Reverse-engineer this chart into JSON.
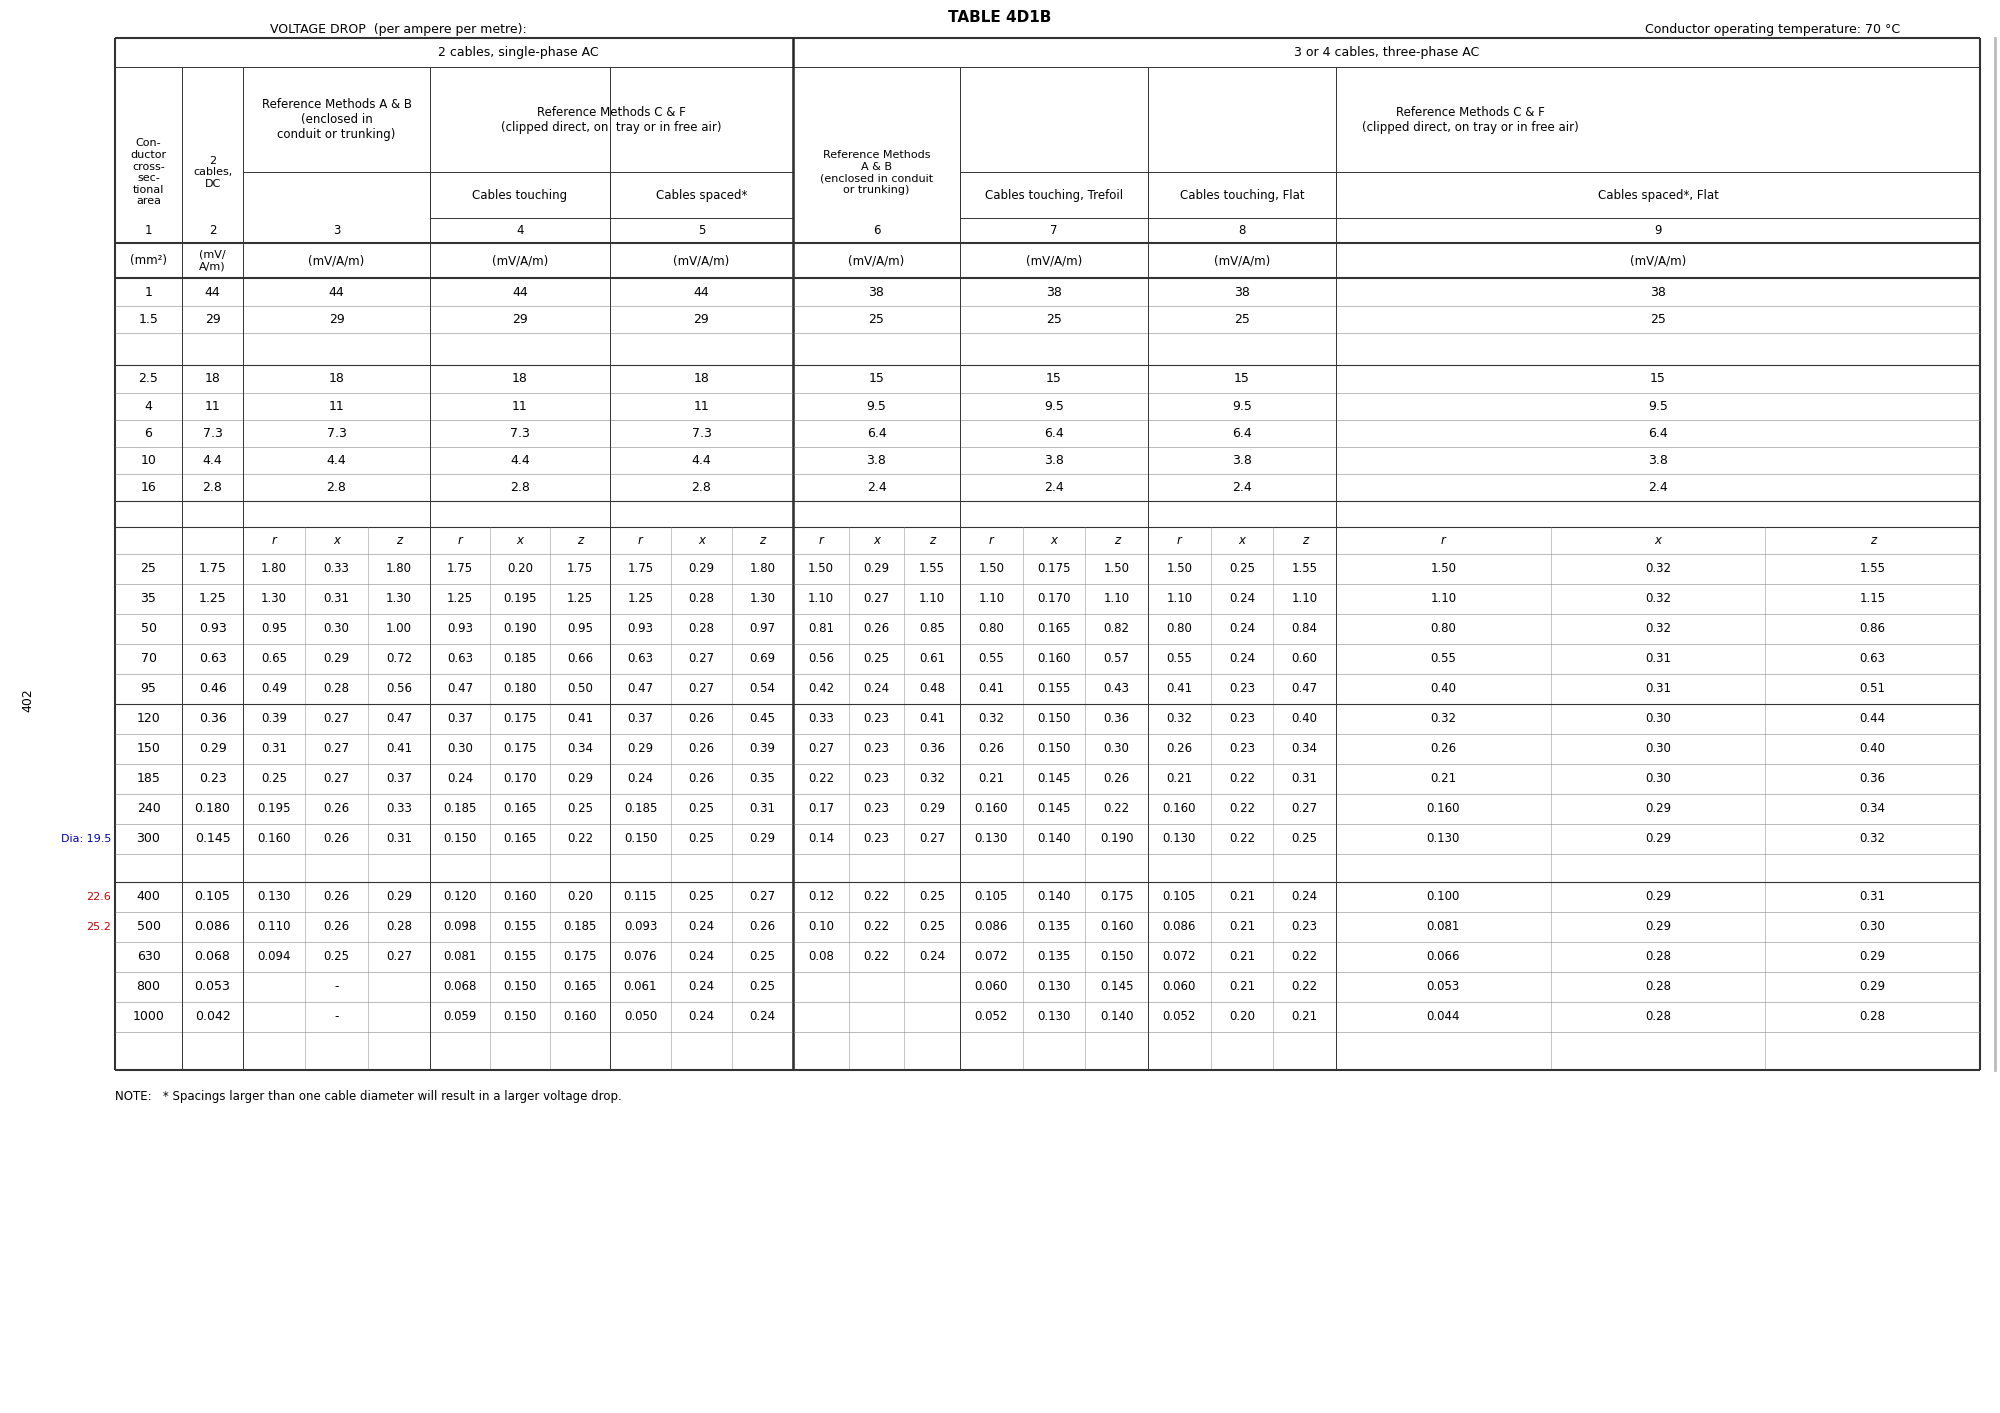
{
  "title": "TABLE 4D1B",
  "voltage_drop_label": "VOLTAGE DROP  (per ampere per metre):",
  "conductor_temp_label": "Conductor operating temperature: 70 °C",
  "page_num": "402",
  "note": "NOTE:   * Spacings larger than one cable diameter will result in a larger voltage drop.",
  "simple_rows": [
    [
      "1",
      "44",
      "44",
      "44",
      "44",
      "38",
      "38",
      "38",
      "38"
    ],
    [
      "1.5",
      "29",
      "29",
      "29",
      "29",
      "25",
      "25",
      "25",
      "25"
    ],
    [
      "2.5",
      "18",
      "18",
      "18",
      "18",
      "15",
      "15",
      "15",
      "15"
    ],
    [
      "4",
      "11",
      "11",
      "11",
      "11",
      "9.5",
      "9.5",
      "9.5",
      "9.5"
    ],
    [
      "6",
      "7.3",
      "7.3",
      "7.3",
      "7.3",
      "6.4",
      "6.4",
      "6.4",
      "6.4"
    ],
    [
      "10",
      "4.4",
      "4.4",
      "4.4",
      "4.4",
      "3.8",
      "3.8",
      "3.8",
      "3.8"
    ],
    [
      "16",
      "2.8",
      "2.8",
      "2.8",
      "2.8",
      "2.4",
      "2.4",
      "2.4",
      "2.4"
    ]
  ],
  "rxz_rows": [
    [
      "25",
      "1.75",
      "1.80",
      "0.33",
      "1.80",
      "1.75",
      "0.20",
      "1.75",
      "1.75",
      "0.29",
      "1.80",
      "1.50",
      "0.29",
      "1.55",
      "1.50",
      "0.175",
      "1.50",
      "1.50",
      "0.25",
      "1.55",
      "1.50",
      "0.32",
      "1.55"
    ],
    [
      "35",
      "1.25",
      "1.30",
      "0.31",
      "1.30",
      "1.25",
      "0.195",
      "1.25",
      "1.25",
      "0.28",
      "1.30",
      "1.10",
      "0.27",
      "1.10",
      "1.10",
      "0.170",
      "1.10",
      "1.10",
      "0.24",
      "1.10",
      "1.10",
      "0.32",
      "1.15"
    ],
    [
      "50",
      "0.93",
      "0.95",
      "0.30",
      "1.00",
      "0.93",
      "0.190",
      "0.95",
      "0.93",
      "0.28",
      "0.97",
      "0.81",
      "0.26",
      "0.85",
      "0.80",
      "0.165",
      "0.82",
      "0.80",
      "0.24",
      "0.84",
      "0.80",
      "0.32",
      "0.86"
    ],
    [
      "70",
      "0.63",
      "0.65",
      "0.29",
      "0.72",
      "0.63",
      "0.185",
      "0.66",
      "0.63",
      "0.27",
      "0.69",
      "0.56",
      "0.25",
      "0.61",
      "0.55",
      "0.160",
      "0.57",
      "0.55",
      "0.24",
      "0.60",
      "0.55",
      "0.31",
      "0.63"
    ],
    [
      "95",
      "0.46",
      "0.49",
      "0.28",
      "0.56",
      "0.47",
      "0.180",
      "0.50",
      "0.47",
      "0.27",
      "0.54",
      "0.42",
      "0.24",
      "0.48",
      "0.41",
      "0.155",
      "0.43",
      "0.41",
      "0.23",
      "0.47",
      "0.40",
      "0.31",
      "0.51"
    ]
  ],
  "rxz_rows2": [
    [
      "120",
      "0.36",
      "0.39",
      "0.27",
      "0.47",
      "0.37",
      "0.175",
      "0.41",
      "0.37",
      "0.26",
      "0.45",
      "0.33",
      "0.23",
      "0.41",
      "0.32",
      "0.150",
      "0.36",
      "0.32",
      "0.23",
      "0.40",
      "0.32",
      "0.30",
      "0.44"
    ],
    [
      "150",
      "0.29",
      "0.31",
      "0.27",
      "0.41",
      "0.30",
      "0.175",
      "0.34",
      "0.29",
      "0.26",
      "0.39",
      "0.27",
      "0.23",
      "0.36",
      "0.26",
      "0.150",
      "0.30",
      "0.26",
      "0.23",
      "0.34",
      "0.26",
      "0.30",
      "0.40"
    ],
    [
      "185",
      "0.23",
      "0.25",
      "0.27",
      "0.37",
      "0.24",
      "0.170",
      "0.29",
      "0.24",
      "0.26",
      "0.35",
      "0.22",
      "0.23",
      "0.32",
      "0.21",
      "0.145",
      "0.26",
      "0.21",
      "0.22",
      "0.31",
      "0.21",
      "0.30",
      "0.36"
    ],
    [
      "240",
      "0.180",
      "0.195",
      "0.26",
      "0.33",
      "0.185",
      "0.165",
      "0.25",
      "0.185",
      "0.25",
      "0.31",
      "0.17",
      "0.23",
      "0.29",
      "0.160",
      "0.145",
      "0.22",
      "0.160",
      "0.22",
      "0.27",
      "0.160",
      "0.29",
      "0.34"
    ],
    [
      "300",
      "0.145",
      "0.160",
      "0.26",
      "0.31",
      "0.150",
      "0.165",
      "0.22",
      "0.150",
      "0.25",
      "0.29",
      "0.14",
      "0.23",
      "0.27",
      "0.130",
      "0.140",
      "0.190",
      "0.130",
      "0.22",
      "0.25",
      "0.130",
      "0.29",
      "0.32"
    ]
  ],
  "rxz_rows3": [
    [
      "400",
      "0.105",
      "0.130",
      "0.26",
      "0.29",
      "0.120",
      "0.160",
      "0.20",
      "0.115",
      "0.25",
      "0.27",
      "0.12",
      "0.22",
      "0.25",
      "0.105",
      "0.140",
      "0.175",
      "0.105",
      "0.21",
      "0.24",
      "0.100",
      "0.29",
      "0.31"
    ],
    [
      "500",
      "0.086",
      "0.110",
      "0.26",
      "0.28",
      "0.098",
      "0.155",
      "0.185",
      "0.093",
      "0.24",
      "0.26",
      "0.10",
      "0.22",
      "0.25",
      "0.086",
      "0.135",
      "0.160",
      "0.086",
      "0.21",
      "0.23",
      "0.081",
      "0.29",
      "0.30"
    ],
    [
      "630",
      "0.068",
      "0.094",
      "0.25",
      "0.27",
      "0.081",
      "0.155",
      "0.175",
      "0.076",
      "0.24",
      "0.25",
      "0.08",
      "0.22",
      "0.24",
      "0.072",
      "0.135",
      "0.150",
      "0.072",
      "0.21",
      "0.22",
      "0.066",
      "0.28",
      "0.29"
    ],
    [
      "800",
      "0.053",
      "",
      "-",
      "",
      "0.068",
      "0.150",
      "0.165",
      "0.061",
      "0.24",
      "0.25",
      "",
      "",
      "",
      "0.060",
      "0.130",
      "0.145",
      "0.060",
      "0.21",
      "0.22",
      "0.053",
      "0.28",
      "0.29"
    ],
    [
      "1000",
      "0.042",
      "",
      "-",
      "",
      "0.059",
      "0.150",
      "0.160",
      "0.050",
      "0.24",
      "0.24",
      "",
      "",
      "",
      "0.052",
      "0.130",
      "0.140",
      "0.052",
      "0.20",
      "0.21",
      "0.044",
      "0.28",
      "0.28"
    ]
  ]
}
